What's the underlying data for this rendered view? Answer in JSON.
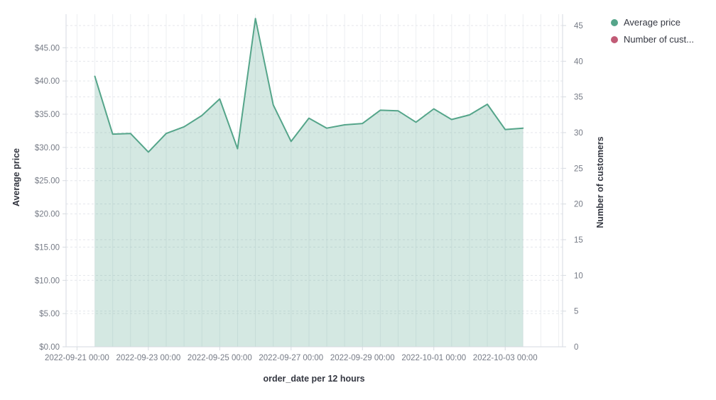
{
  "legend": {
    "items": [
      {
        "label": "Average price",
        "color": "#55a58a"
      },
      {
        "label": "Number of cust...",
        "color": "#c15b76"
      }
    ]
  },
  "chart_data": {
    "type": "area",
    "title": "",
    "x_axis": {
      "title": "order_date per 12 hours",
      "tick_labels": [
        "2022-09-21 00:00",
        "2022-09-23 00:00",
        "2022-09-25 00:00",
        "2022-09-27 00:00",
        "2022-09-29 00:00",
        "2022-10-01 00:00",
        "2022-10-03 00:00"
      ]
    },
    "left_axis": {
      "title": "Average price",
      "tick_labels": [
        "$0.00",
        "$5.00",
        "$10.00",
        "$15.00",
        "$20.00",
        "$25.00",
        "$30.00",
        "$35.00",
        "$40.00",
        "$45.00"
      ],
      "tick_values": [
        0,
        5,
        10,
        15,
        20,
        25,
        30,
        35,
        40,
        45
      ],
      "range": [
        0,
        50
      ]
    },
    "right_axis": {
      "title": "Number of customers",
      "tick_labels": [
        "0",
        "5",
        "10",
        "15",
        "20",
        "25",
        "30",
        "35",
        "40",
        "45"
      ],
      "tick_values": [
        0,
        5,
        10,
        15,
        20,
        25,
        30,
        35,
        40,
        45
      ],
      "range": [
        0,
        46.6
      ]
    },
    "grid": {
      "horizontal": "dashed, both axes",
      "vertical": "solid, every 12 hours",
      "legend_position": "top-right"
    },
    "series": [
      {
        "name": "Average price",
        "axis": "left",
        "type": "area",
        "color": "#55a58a",
        "fill": "rgba(85,165,138,0.25)",
        "x": [
          "2022-09-21 12:00",
          "2022-09-22 00:00",
          "2022-09-22 12:00",
          "2022-09-23 00:00",
          "2022-09-23 12:00",
          "2022-09-24 00:00",
          "2022-09-24 12:00",
          "2022-09-25 00:00",
          "2022-09-25 12:00",
          "2022-09-26 00:00",
          "2022-09-26 12:00",
          "2022-09-27 00:00",
          "2022-09-27 12:00",
          "2022-09-28 00:00",
          "2022-09-28 12:00",
          "2022-09-29 00:00",
          "2022-09-29 12:00",
          "2022-09-30 00:00",
          "2022-09-30 12:00",
          "2022-10-01 00:00",
          "2022-10-01 12:00",
          "2022-10-02 00:00",
          "2022-10-02 12:00",
          "2022-10-03 00:00",
          "2022-10-03 12:00"
        ],
        "values": [
          40.7,
          32.0,
          32.1,
          29.3,
          32.1,
          33.1,
          34.8,
          37.3,
          29.8,
          49.4,
          36.4,
          30.9,
          34.4,
          32.9,
          33.4,
          33.6,
          35.6,
          35.5,
          33.8,
          35.8,
          34.2,
          34.9,
          36.5,
          32.7,
          32.9
        ]
      },
      {
        "name": "Number of customers",
        "axis": "right",
        "type": "line",
        "color": "#c15b76",
        "x": [],
        "values": []
      }
    ]
  },
  "colors": {
    "tick_text": "#767b86",
    "title_text": "#343741",
    "v_grid": "#edeff2",
    "h_grid": "#e4e6eb",
    "axis_line": "#d6dae0"
  }
}
